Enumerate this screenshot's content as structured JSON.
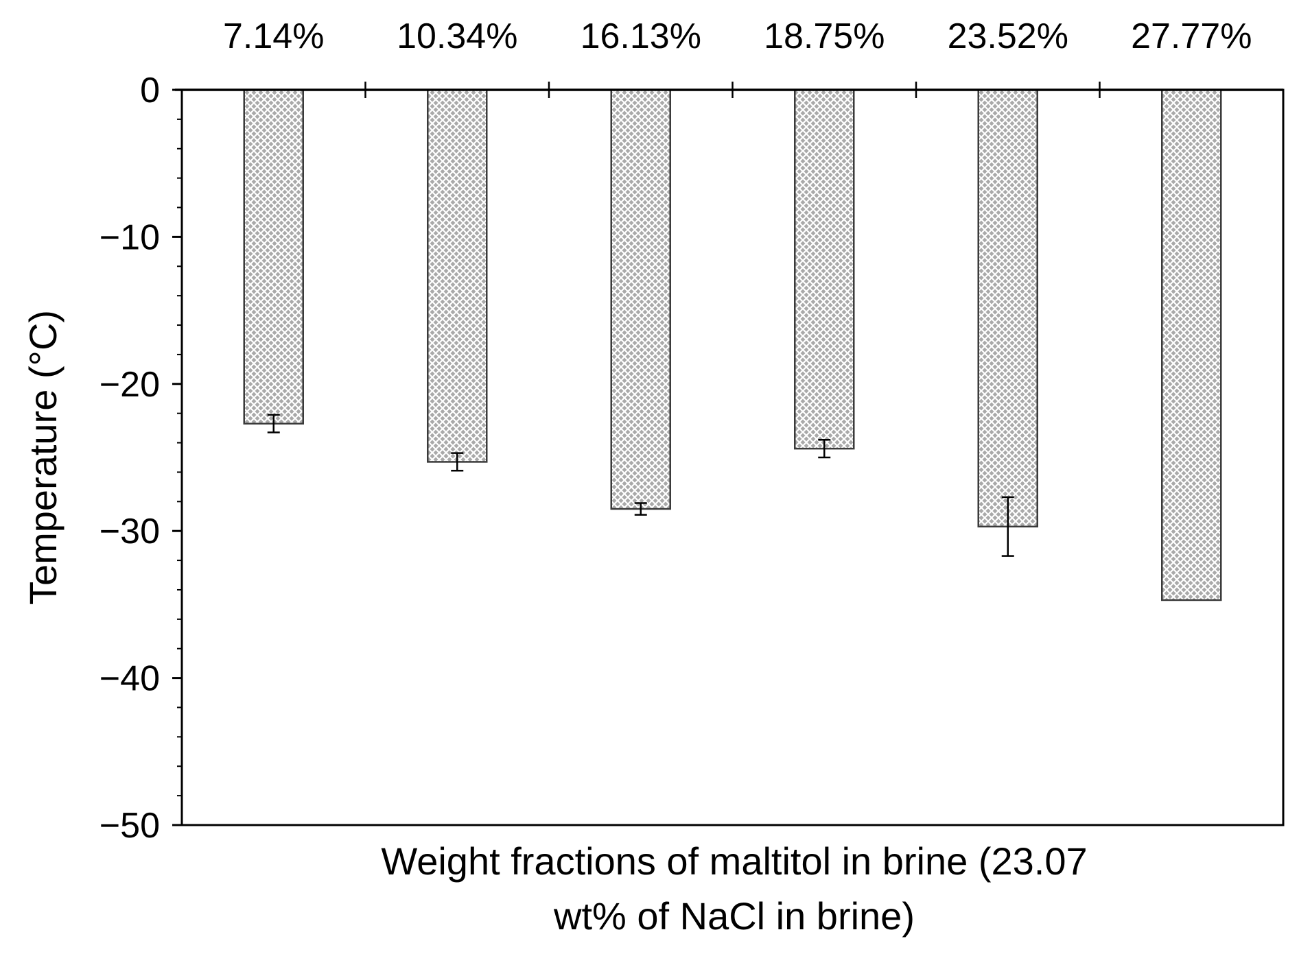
{
  "chart_data": {
    "type": "bar",
    "title": "",
    "xlabel_lines": [
      "Weight fractions of maltitol in brine (23.07",
      "wt% of NaCl in brine)"
    ],
    "ylabel": "Temperature (°C)",
    "categories": [
      "7.14%",
      "10.34%",
      "16.13%",
      "18.75%",
      "23.52%",
      "27.77%"
    ],
    "values": [
      -22.7,
      -25.3,
      -28.5,
      -24.4,
      -29.7,
      -34.7
    ],
    "errors": [
      0.6,
      0.6,
      0.4,
      0.6,
      2.0,
      0.0
    ],
    "ylim": [
      -50,
      0
    ],
    "yticks": [
      0,
      -10,
      -20,
      -30,
      -40,
      -50
    ],
    "ytick_labels": [
      "0",
      "−10",
      "−20",
      "−30",
      "−40",
      "−50"
    ],
    "category_axis_position": "top",
    "bar_fill": "crosshatch",
    "bar_color": "#808080",
    "grid": false
  }
}
